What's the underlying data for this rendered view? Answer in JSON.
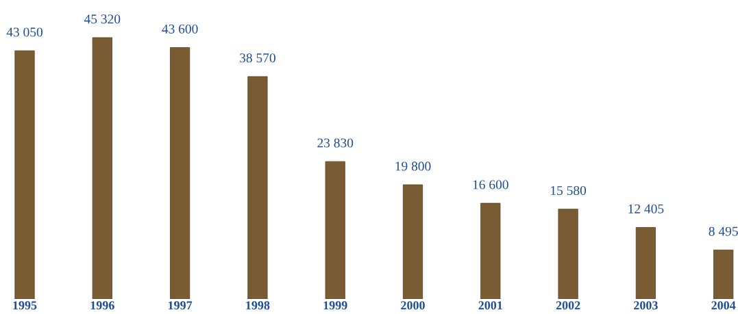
{
  "chart_data": {
    "type": "bar",
    "categories": [
      "1995",
      "1996",
      "1997",
      "1998",
      "1999",
      "2000",
      "2001",
      "2002",
      "2003",
      "2004"
    ],
    "values": [
      43050,
      45320,
      43600,
      38570,
      23830,
      19800,
      16600,
      15580,
      12405,
      8495
    ],
    "value_labels": [
      "43 050",
      "45 320",
      "43 600",
      "38 570",
      "23 830",
      "19 800",
      "16 600",
      "15 580",
      "12 405",
      "8 495"
    ],
    "color": "#7a5c34",
    "grid": false,
    "legend": false
  }
}
